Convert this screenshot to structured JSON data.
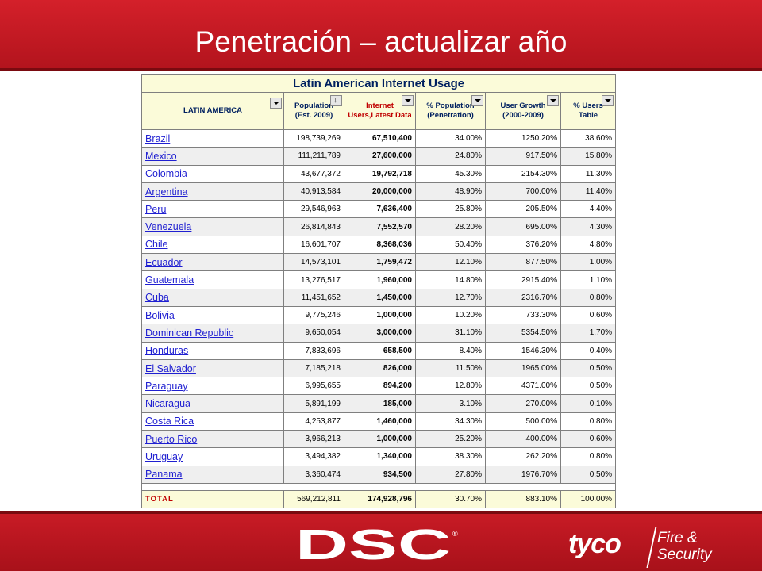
{
  "slide": {
    "title": "Penetración – actualizar año"
  },
  "table": {
    "caption": "Latin American Internet Usage",
    "headers": {
      "region": "LATIN AMERICA",
      "population": "Population (Est. 2009)",
      "internet_users": "Internet Users,Latest Data",
      "penetration": "% Population (Penetration)",
      "growth": "User Growth (2000-2009)",
      "users_table": "% Users Table"
    },
    "rows": [
      {
        "country": "Brazil",
        "population": "198,739,269",
        "users": "67,510,400",
        "penetration": "34.00%",
        "growth": "1250.20%",
        "share": "38.60%"
      },
      {
        "country": "Mexico",
        "population": "111,211,789",
        "users": "27,600,000",
        "penetration": "24.80%",
        "growth": "917.50%",
        "share": "15.80%"
      },
      {
        "country": "Colombia",
        "population": "43,677,372",
        "users": "19,792,718",
        "penetration": "45.30%",
        "growth": "2154.30%",
        "share": "11.30%"
      },
      {
        "country": "Argentina",
        "population": "40,913,584",
        "users": "20,000,000",
        "penetration": "48.90%",
        "growth": "700.00%",
        "share": "11.40%"
      },
      {
        "country": "Peru",
        "population": "29,546,963",
        "users": "7,636,400",
        "penetration": "25.80%",
        "growth": "205.50%",
        "share": "4.40%"
      },
      {
        "country": "Venezuela",
        "population": "26,814,843",
        "users": "7,552,570",
        "penetration": "28.20%",
        "growth": "695.00%",
        "share": "4.30%"
      },
      {
        "country": "Chile",
        "population": "16,601,707",
        "users": "8,368,036",
        "penetration": "50.40%",
        "growth": "376.20%",
        "share": "4.80%"
      },
      {
        "country": "Ecuador",
        "population": "14,573,101",
        "users": "1,759,472",
        "penetration": "12.10%",
        "growth": "877.50%",
        "share": "1.00%"
      },
      {
        "country": "Guatemala",
        "population": "13,276,517",
        "users": "1,960,000",
        "penetration": "14.80%",
        "growth": "2915.40%",
        "share": "1.10%"
      },
      {
        "country": "Cuba",
        "population": "11,451,652",
        "users": "1,450,000",
        "penetration": "12.70%",
        "growth": "2316.70%",
        "share": "0.80%"
      },
      {
        "country": "Bolivia",
        "population": "9,775,246",
        "users": "1,000,000",
        "penetration": "10.20%",
        "growth": "733.30%",
        "share": "0.60%"
      },
      {
        "country": "Dominican Republic",
        "population": "9,650,054",
        "users": "3,000,000",
        "penetration": "31.10%",
        "growth": "5354.50%",
        "share": "1.70%"
      },
      {
        "country": "Honduras",
        "population": "7,833,696",
        "users": "658,500",
        "penetration": "8.40%",
        "growth": "1546.30%",
        "share": "0.40%"
      },
      {
        "country": "El Salvador",
        "population": "7,185,218",
        "users": "826,000",
        "penetration": "11.50%",
        "growth": "1965.00%",
        "share": "0.50%"
      },
      {
        "country": "Paraguay",
        "population": "6,995,655",
        "users": "894,200",
        "penetration": "12.80%",
        "growth": "4371.00%",
        "share": "0.50%"
      },
      {
        "country": "Nicaragua",
        "population": "5,891,199",
        "users": "185,000",
        "penetration": "3.10%",
        "growth": "270.00%",
        "share": "0.10%"
      },
      {
        "country": "Costa Rica",
        "population": "4,253,877",
        "users": "1,460,000",
        "penetration": "34.30%",
        "growth": "500.00%",
        "share": "0.80%"
      },
      {
        "country": "Puerto Rico",
        "population": "3,966,213",
        "users": "1,000,000",
        "penetration": "25.20%",
        "growth": "400.00%",
        "share": "0.60%"
      },
      {
        "country": "Uruguay",
        "population": "3,494,382",
        "users": "1,340,000",
        "penetration": "38.30%",
        "growth": "262.20%",
        "share": "0.80%"
      },
      {
        "country": "Panama",
        "population": "3,360,474",
        "users": "934,500",
        "penetration": "27.80%",
        "growth": "1976.70%",
        "share": "0.50%"
      }
    ],
    "total": {
      "label": "TOTAL",
      "population": "569,212,811",
      "users": "174,928,796",
      "penetration": "30.70%",
      "growth": "883.10%",
      "share": "100.00%"
    }
  },
  "footer": {
    "dsc_logo": "DSC",
    "tyco_logo": "tyco",
    "tyco_line1": "Fire &",
    "tyco_line2": "Security"
  },
  "colors": {
    "brand_red": "#c81b25",
    "header_fill": "#fbfbd9",
    "link_blue": "#1f1fd1",
    "header_red_text": "#c00000",
    "caption_navy": "#002060"
  },
  "icons": [
    "dropdown-arrow-icon",
    "sort-descending-icon"
  ]
}
